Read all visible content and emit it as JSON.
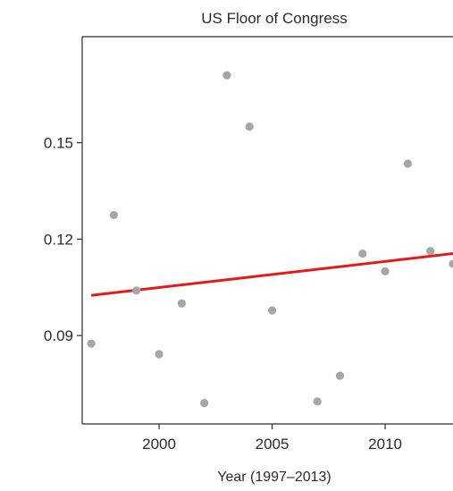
{
  "chart_data": {
    "type": "scatter",
    "title": "US Floor of Congress",
    "xlabel": "Year (1997–2013)",
    "ylabel": "",
    "xlim": [
      1996.6,
      2013.0
    ],
    "ylim": [
      0.0625,
      0.183
    ],
    "x_ticks": [
      2000,
      2005,
      2010
    ],
    "y_ticks": [
      0.09,
      0.12,
      0.15
    ],
    "y_tick_labels": [
      "0.09",
      "0.12",
      "0.15"
    ],
    "grid": false,
    "points": {
      "color": "#a6a6a6",
      "x": [
        1997,
        1998,
        1999,
        2000,
        2001,
        2002,
        2003,
        2004,
        2005,
        2007,
        2008,
        2009,
        2010,
        2011,
        2012,
        2013
      ],
      "y": [
        0.0875,
        0.1275,
        0.104,
        0.0842,
        0.1,
        0.069,
        0.171,
        0.155,
        0.0978,
        0.0695,
        0.0775,
        0.1155,
        0.11,
        0.1435,
        0.1163,
        0.1123
      ]
    },
    "trend_line": {
      "color": "#e31a1c",
      "x": [
        1997,
        2013
      ],
      "y": [
        0.1025,
        0.1155
      ]
    }
  }
}
